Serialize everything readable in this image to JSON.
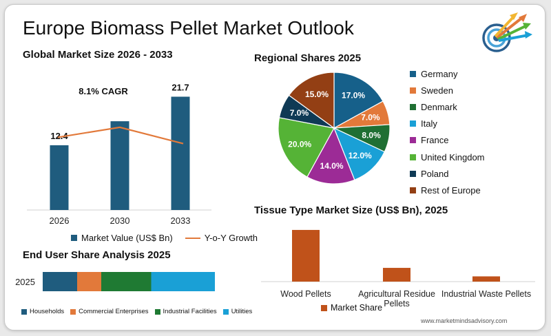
{
  "page": {
    "title": "Europe Biomass Pellet Market Outlook",
    "website": "www.marketmindsadvisory.com",
    "logo_icon": "target-arrows-logo-icon"
  },
  "colors": {
    "bar_blue": "#1f5c7e",
    "growth_line": "#e2793a",
    "tissue_bar": "#c0521a"
  },
  "chart_data": [
    {
      "id": "global",
      "type": "bar",
      "title": "Global Market Size 2026 - 2033",
      "categories": [
        "2026",
        "2030",
        "2033"
      ],
      "series": [
        {
          "name": "Market Value (US$ Bn)",
          "values": [
            12.4,
            17.0,
            21.7
          ],
          "labels": [
            "12.4",
            "",
            "21.7"
          ]
        },
        {
          "name": "Y-o-Y Growth",
          "type": "line",
          "values": [
            0.58,
            0.66,
            0.53
          ]
        }
      ],
      "annotation": "8.1% CAGR",
      "ylim": [
        0,
        24
      ],
      "grid": false,
      "legend": "bottom"
    },
    {
      "id": "regional",
      "type": "pie",
      "title": "Regional Shares 2025",
      "labels": [
        "Germany",
        "Sweden",
        "Denmark",
        "Italy",
        "France",
        "United Kingdom",
        "Poland",
        "Rest of Europe"
      ],
      "values": [
        17.0,
        7.0,
        8.0,
        12.0,
        14.0,
        20.0,
        7.0,
        15.0
      ],
      "value_labels": [
        "17.0%",
        "7.0%",
        "8.0%",
        "12.0%",
        "14.0%",
        "20.0%",
        "7.0%",
        "15.0%"
      ],
      "colors": [
        "#16608a",
        "#e2793a",
        "#1f6f33",
        "#1aa0d6",
        "#9c2b96",
        "#55b336",
        "#0f3a55",
        "#933f14"
      ],
      "legend": "right"
    },
    {
      "id": "enduser",
      "type": "bar",
      "orientation": "horizontal-stacked",
      "title": "End User Share Analysis 2025",
      "categories": [
        "2025"
      ],
      "series": [
        {
          "name": "Households",
          "values": [
            20
          ],
          "color": "#1f5c7e"
        },
        {
          "name": "Commercial Enterprises",
          "values": [
            14
          ],
          "color": "#e2793a"
        },
        {
          "name": "Industrial Facilities",
          "values": [
            29
          ],
          "color": "#1f7a33"
        },
        {
          "name": "Utilities",
          "values": [
            37
          ],
          "color": "#1aa0d6"
        }
      ],
      "xlim": [
        0,
        100
      ],
      "legend": "bottom"
    },
    {
      "id": "tissue",
      "type": "bar",
      "title": "Tissue Type Market Size (US$ Bn), 2025",
      "categories": [
        "Wood Pellets",
        "Agricultural Residue Pellets",
        "Industrial Waste Pellets"
      ],
      "series": [
        {
          "name": "Market Share",
          "values": [
            7.9,
            2.1,
            0.8
          ]
        }
      ],
      "ylim": [
        0,
        8
      ],
      "legend": "bottom"
    }
  ]
}
